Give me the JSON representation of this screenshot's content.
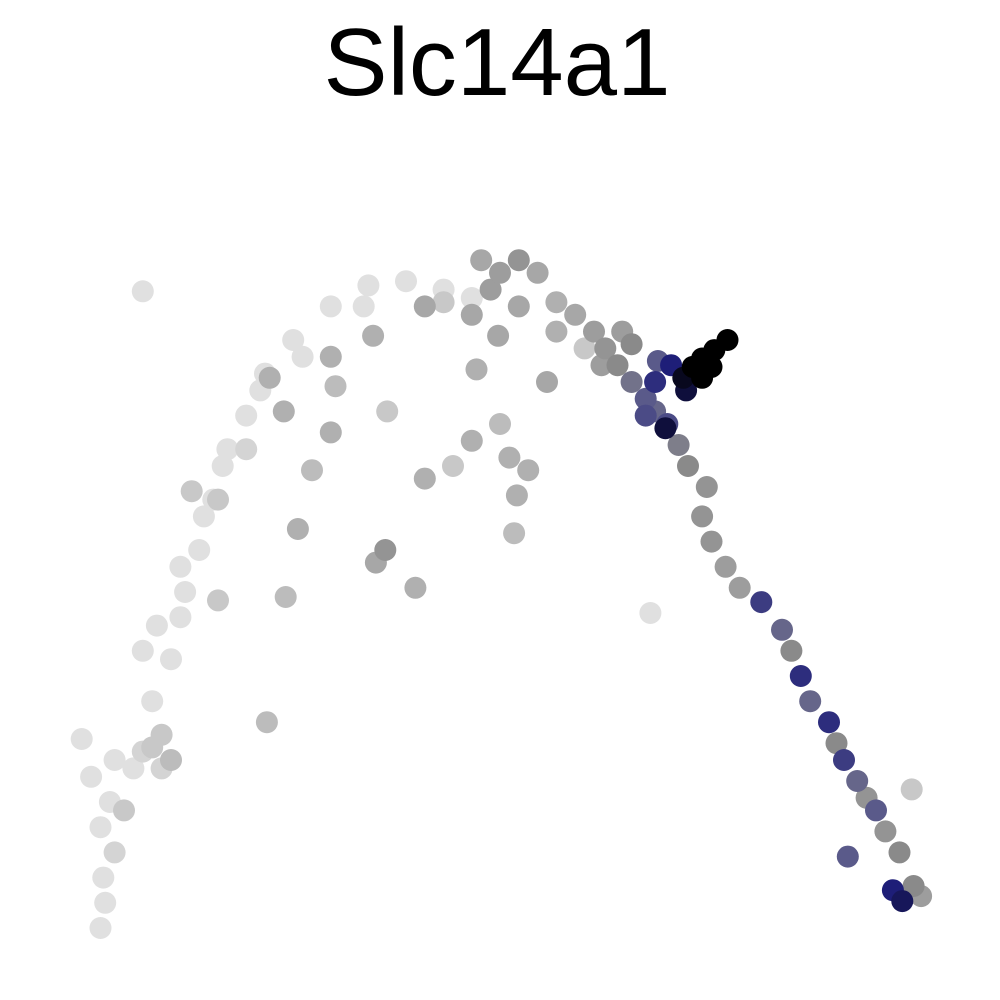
{
  "chart_data": {
    "type": "scatter",
    "title": "Slc14a1",
    "xlabel": "",
    "ylabel": "",
    "axes_visible": false,
    "grid": false,
    "legend": "none",
    "xlim": [
      0,
      1000
    ],
    "ylim": [
      0,
      1000
    ],
    "color_scale": [
      "#e0e0e0",
      "#b0b0b0",
      "#8a8a8a",
      "#5a5a8a",
      "#1e1e78",
      "#000000"
    ],
    "series": [
      {
        "points": [
          {
            "x": 75,
            "y": 50,
            "v": 0
          },
          {
            "x": 80,
            "y": 80,
            "v": 0
          },
          {
            "x": 78,
            "y": 110,
            "v": 0
          },
          {
            "x": 90,
            "y": 140,
            "v": 0.05
          },
          {
            "x": 75,
            "y": 170,
            "v": 0
          },
          {
            "x": 85,
            "y": 200,
            "v": 0
          },
          {
            "x": 65,
            "y": 230,
            "v": 0
          },
          {
            "x": 55,
            "y": 275,
            "v": 0
          },
          {
            "x": 90,
            "y": 250,
            "v": 0
          },
          {
            "x": 110,
            "y": 240,
            "v": 0
          },
          {
            "x": 120,
            "y": 260,
            "v": 0.05
          },
          {
            "x": 140,
            "y": 280,
            "v": 0.1
          },
          {
            "x": 130,
            "y": 320,
            "v": 0
          },
          {
            "x": 150,
            "y": 370,
            "v": 0
          },
          {
            "x": 160,
            "y": 420,
            "v": 0
          },
          {
            "x": 165,
            "y": 450,
            "v": 0
          },
          {
            "x": 180,
            "y": 500,
            "v": 0
          },
          {
            "x": 195,
            "y": 560,
            "v": 0
          },
          {
            "x": 205,
            "y": 600,
            "v": 0
          },
          {
            "x": 230,
            "y": 660,
            "v": 0
          },
          {
            "x": 250,
            "y": 710,
            "v": 0
          },
          {
            "x": 280,
            "y": 750,
            "v": 0
          },
          {
            "x": 320,
            "y": 790,
            "v": 0
          },
          {
            "x": 360,
            "y": 815,
            "v": 0
          },
          {
            "x": 400,
            "y": 820,
            "v": 0
          },
          {
            "x": 440,
            "y": 810,
            "v": 0
          },
          {
            "x": 470,
            "y": 800,
            "v": 0
          },
          {
            "x": 120,
            "y": 380,
            "v": 0
          },
          {
            "x": 135,
            "y": 410,
            "v": 0
          },
          {
            "x": 160,
            "y": 480,
            "v": 0
          },
          {
            "x": 185,
            "y": 540,
            "v": 0
          },
          {
            "x": 210,
            "y": 620,
            "v": 0
          },
          {
            "x": 245,
            "y": 690,
            "v": 0
          },
          {
            "x": 290,
            "y": 730,
            "v": 0
          },
          {
            "x": 100,
            "y": 190,
            "v": 0.1
          },
          {
            "x": 130,
            "y": 265,
            "v": 0.1
          },
          {
            "x": 150,
            "y": 250,
            "v": 0.15
          },
          {
            "x": 200,
            "y": 560,
            "v": 0.1
          },
          {
            "x": 230,
            "y": 620,
            "v": 0.05
          },
          {
            "x": 140,
            "y": 240,
            "v": 0.05
          },
          {
            "x": 255,
            "y": 705,
            "v": 0.2
          },
          {
            "x": 270,
            "y": 665,
            "v": 0.2
          },
          {
            "x": 272,
            "y": 444,
            "v": 0.15
          },
          {
            "x": 285,
            "y": 525,
            "v": 0.2
          },
          {
            "x": 300,
            "y": 595,
            "v": 0.15
          },
          {
            "x": 320,
            "y": 640,
            "v": 0.2
          },
          {
            "x": 325,
            "y": 695,
            "v": 0.15
          },
          {
            "x": 365,
            "y": 755,
            "v": 0.2
          },
          {
            "x": 380,
            "y": 665,
            "v": 0.1
          },
          {
            "x": 378,
            "y": 500,
            "v": 0.35
          },
          {
            "x": 368,
            "y": 485,
            "v": 0.25
          },
          {
            "x": 410,
            "y": 455,
            "v": 0.2
          },
          {
            "x": 420,
            "y": 585,
            "v": 0.2
          },
          {
            "x": 450,
            "y": 600,
            "v": 0.1
          },
          {
            "x": 470,
            "y": 630,
            "v": 0.2
          },
          {
            "x": 500,
            "y": 650,
            "v": 0.15
          },
          {
            "x": 510,
            "y": 610,
            "v": 0.2
          },
          {
            "x": 518,
            "y": 565,
            "v": 0.2
          },
          {
            "x": 515,
            "y": 520,
            "v": 0.15
          },
          {
            "x": 530,
            "y": 595,
            "v": 0.2
          },
          {
            "x": 550,
            "y": 700,
            "v": 0.25
          },
          {
            "x": 560,
            "y": 760,
            "v": 0.2
          },
          {
            "x": 590,
            "y": 740,
            "v": 0.1
          },
          {
            "x": 470,
            "y": 780,
            "v": 0.25
          },
          {
            "x": 490,
            "y": 810,
            "v": 0.3
          },
          {
            "x": 520,
            "y": 845,
            "v": 0.35
          },
          {
            "x": 500,
            "y": 830,
            "v": 0.3
          },
          {
            "x": 540,
            "y": 830,
            "v": 0.25
          },
          {
            "x": 560,
            "y": 795,
            "v": 0.2
          },
          {
            "x": 580,
            "y": 780,
            "v": 0.25
          },
          {
            "x": 600,
            "y": 760,
            "v": 0.3
          },
          {
            "x": 612,
            "y": 740,
            "v": 0.35
          },
          {
            "x": 625,
            "y": 720,
            "v": 0.4
          },
          {
            "x": 640,
            "y": 700,
            "v": 0.5
          },
          {
            "x": 655,
            "y": 680,
            "v": 0.6
          },
          {
            "x": 665,
            "y": 665,
            "v": 0.55
          },
          {
            "x": 678,
            "y": 650,
            "v": 0.65
          },
          {
            "x": 690,
            "y": 625,
            "v": 0.45
          },
          {
            "x": 700,
            "y": 600,
            "v": 0.4
          },
          {
            "x": 715,
            "y": 540,
            "v": 0.35
          },
          {
            "x": 725,
            "y": 510,
            "v": 0.35
          },
          {
            "x": 740,
            "y": 480,
            "v": 0.3
          },
          {
            "x": 755,
            "y": 455,
            "v": 0.3
          },
          {
            "x": 778,
            "y": 438,
            "v": 0.7
          },
          {
            "x": 800,
            "y": 405,
            "v": 0.55
          },
          {
            "x": 810,
            "y": 380,
            "v": 0.4
          },
          {
            "x": 820,
            "y": 350,
            "v": 0.75
          },
          {
            "x": 830,
            "y": 320,
            "v": 0.55
          },
          {
            "x": 850,
            "y": 295,
            "v": 0.75
          },
          {
            "x": 858,
            "y": 270,
            "v": 0.4
          },
          {
            "x": 866,
            "y": 250,
            "v": 0.7
          },
          {
            "x": 880,
            "y": 225,
            "v": 0.55
          },
          {
            "x": 890,
            "y": 205,
            "v": 0.35
          },
          {
            "x": 900,
            "y": 190,
            "v": 0.6
          },
          {
            "x": 910,
            "y": 165,
            "v": 0.35
          },
          {
            "x": 925,
            "y": 140,
            "v": 0.4
          },
          {
            "x": 870,
            "y": 135,
            "v": 0.6
          },
          {
            "x": 918,
            "y": 95,
            "v": 0.8
          },
          {
            "x": 928,
            "y": 82,
            "v": 0.85
          },
          {
            "x": 940,
            "y": 100,
            "v": 0.4
          },
          {
            "x": 948,
            "y": 88,
            "v": 0.3
          },
          {
            "x": 938,
            "y": 215,
            "v": 0.1
          },
          {
            "x": 720,
            "y": 575,
            "v": 0.35
          },
          {
            "x": 660,
            "y": 425,
            "v": 0
          },
          {
            "x": 668,
            "y": 725,
            "v": 0.6
          },
          {
            "x": 665,
            "y": 700,
            "v": 0.75
          },
          {
            "x": 655,
            "y": 660,
            "v": 0.65
          },
          {
            "x": 676,
            "y": 645,
            "v": 0.9
          },
          {
            "x": 695,
            "y": 705,
            "v": 0.95
          },
          {
            "x": 705,
            "y": 718,
            "v": 1
          },
          {
            "x": 715,
            "y": 728,
            "v": 1
          },
          {
            "x": 728,
            "y": 738,
            "v": 1
          },
          {
            "x": 742,
            "y": 750,
            "v": 1
          },
          {
            "x": 698,
            "y": 690,
            "v": 0.9
          },
          {
            "x": 682,
            "y": 720,
            "v": 0.8
          },
          {
            "x": 715,
            "y": 705,
            "v": 1
          },
          {
            "x": 725,
            "y": 718,
            "v": 1
          },
          {
            "x": 640,
            "y": 745,
            "v": 0.4
          },
          {
            "x": 630,
            "y": 760,
            "v": 0.3
          },
          {
            "x": 608,
            "y": 720,
            "v": 0.3
          },
          {
            "x": 480,
            "y": 845,
            "v": 0.25
          },
          {
            "x": 520,
            "y": 790,
            "v": 0.25
          },
          {
            "x": 475,
            "y": 715,
            "v": 0.2
          },
          {
            "x": 498,
            "y": 755,
            "v": 0.25
          },
          {
            "x": 440,
            "y": 795,
            "v": 0.1
          },
          {
            "x": 420,
            "y": 790,
            "v": 0.25
          },
          {
            "x": 355,
            "y": 790,
            "v": 0
          },
          {
            "x": 320,
            "y": 730,
            "v": 0.2
          },
          {
            "x": 252,
            "y": 295,
            "v": 0.15
          },
          {
            "x": 120,
            "y": 808,
            "v": 0
          },
          {
            "x": 172,
            "y": 570,
            "v": 0.1
          },
          {
            "x": 200,
            "y": 440,
            "v": 0.1
          }
        ]
      }
    ]
  }
}
